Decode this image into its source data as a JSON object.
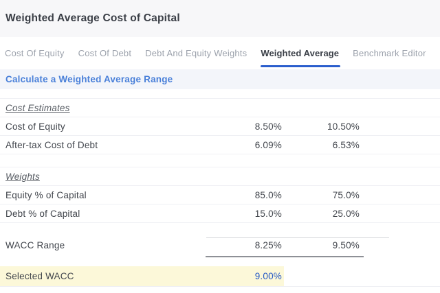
{
  "header": {
    "title": "Weighted Average Cost of Capital"
  },
  "tabs": [
    {
      "label": "Cost Of Equity",
      "active": false
    },
    {
      "label": "Cost Of Debt",
      "active": false
    },
    {
      "label": "Debt And Equity Weights",
      "active": false
    },
    {
      "label": "Weighted Average",
      "active": true
    },
    {
      "label": "Benchmark Editor",
      "active": false
    }
  ],
  "banner": {
    "link_label": "Calculate a Weighted Average Range"
  },
  "table": {
    "sections": [
      {
        "heading": "Cost Estimates",
        "rows": [
          {
            "label": "Cost of Equity",
            "low": "8.50%",
            "high": "10.50%"
          },
          {
            "label": "After-tax Cost of Debt",
            "low": "6.09%",
            "high": "6.53%"
          }
        ]
      },
      {
        "heading": "Weights",
        "rows": [
          {
            "label": "Equity % of Capital",
            "low": "85.0%",
            "high": "75.0%"
          },
          {
            "label": "Debt % of Capital",
            "low": "15.0%",
            "high": "25.0%"
          }
        ]
      }
    ],
    "wacc_range": {
      "label": "WACC Range",
      "low": "8.25%",
      "high": "9.50%"
    },
    "selected_wacc": {
      "label": "Selected WACC",
      "value": "9.00%"
    }
  },
  "colors": {
    "header_background": "#f7f7f9",
    "active_tab_underline": "#2b5ecd",
    "banner_background": "#f3f5fa",
    "link_blue": "#4a80d9",
    "highlight_yellow": "#fcf8d9",
    "selected_value_blue": "#2257c5"
  }
}
